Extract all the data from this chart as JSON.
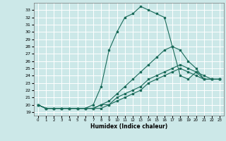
{
  "title": "",
  "xlabel": "Humidex (Indice chaleur)",
  "ylabel": "",
  "bg_color": "#cce8e8",
  "grid_color": "#ffffff",
  "line_color": "#1a6b5a",
  "xlim": [
    -0.5,
    23.5
  ],
  "ylim": [
    18.5,
    34.0
  ],
  "yticks": [
    19,
    20,
    21,
    22,
    23,
    24,
    25,
    26,
    27,
    28,
    29,
    30,
    31,
    32,
    33
  ],
  "xticks": [
    0,
    1,
    2,
    3,
    4,
    5,
    6,
    7,
    8,
    9,
    10,
    11,
    12,
    13,
    14,
    15,
    16,
    17,
    18,
    19,
    20,
    21,
    22,
    23
  ],
  "series": [
    {
      "x": [
        0,
        1,
        2,
        3,
        4,
        5,
        6,
        7,
        8,
        9,
        10,
        11,
        12,
        13,
        14,
        15,
        16,
        17,
        18,
        19,
        20,
        21,
        22,
        23
      ],
      "y": [
        20.0,
        19.5,
        19.5,
        19.5,
        19.5,
        19.5,
        19.5,
        20.0,
        22.5,
        27.5,
        30.0,
        32.0,
        32.5,
        33.5,
        33.0,
        32.5,
        32.0,
        28.0,
        24.0,
        23.5,
        24.5,
        23.5,
        23.5,
        23.5
      ]
    },
    {
      "x": [
        0,
        1,
        2,
        3,
        4,
        5,
        6,
        7,
        8,
        9,
        10,
        11,
        12,
        13,
        14,
        15,
        16,
        17,
        18,
        19,
        20,
        21,
        22,
        23
      ],
      "y": [
        20.0,
        19.5,
        19.5,
        19.5,
        19.5,
        19.5,
        19.5,
        19.5,
        20.0,
        20.5,
        21.5,
        22.5,
        23.5,
        24.5,
        25.5,
        26.5,
        27.5,
        28.0,
        27.5,
        26.0,
        25.0,
        23.5,
        23.5,
        23.5
      ]
    },
    {
      "x": [
        0,
        1,
        2,
        3,
        4,
        5,
        6,
        7,
        8,
        9,
        10,
        11,
        12,
        13,
        14,
        15,
        16,
        17,
        18,
        19,
        20,
        21,
        22,
        23
      ],
      "y": [
        20.0,
        19.5,
        19.5,
        19.5,
        19.5,
        19.5,
        19.5,
        19.5,
        20.0,
        20.0,
        21.0,
        21.5,
        22.0,
        22.5,
        23.5,
        24.0,
        24.5,
        25.0,
        25.5,
        25.0,
        24.5,
        24.0,
        23.5,
        23.5
      ]
    },
    {
      "x": [
        0,
        1,
        2,
        3,
        4,
        5,
        6,
        7,
        8,
        9,
        10,
        11,
        12,
        13,
        14,
        15,
        16,
        17,
        18,
        19,
        20,
        21,
        22,
        23
      ],
      "y": [
        20.0,
        19.5,
        19.5,
        19.5,
        19.5,
        19.5,
        19.5,
        19.5,
        19.5,
        20.0,
        20.5,
        21.0,
        21.5,
        22.0,
        23.0,
        23.5,
        24.0,
        24.5,
        25.0,
        24.5,
        24.0,
        23.5,
        23.5,
        23.5
      ]
    }
  ]
}
